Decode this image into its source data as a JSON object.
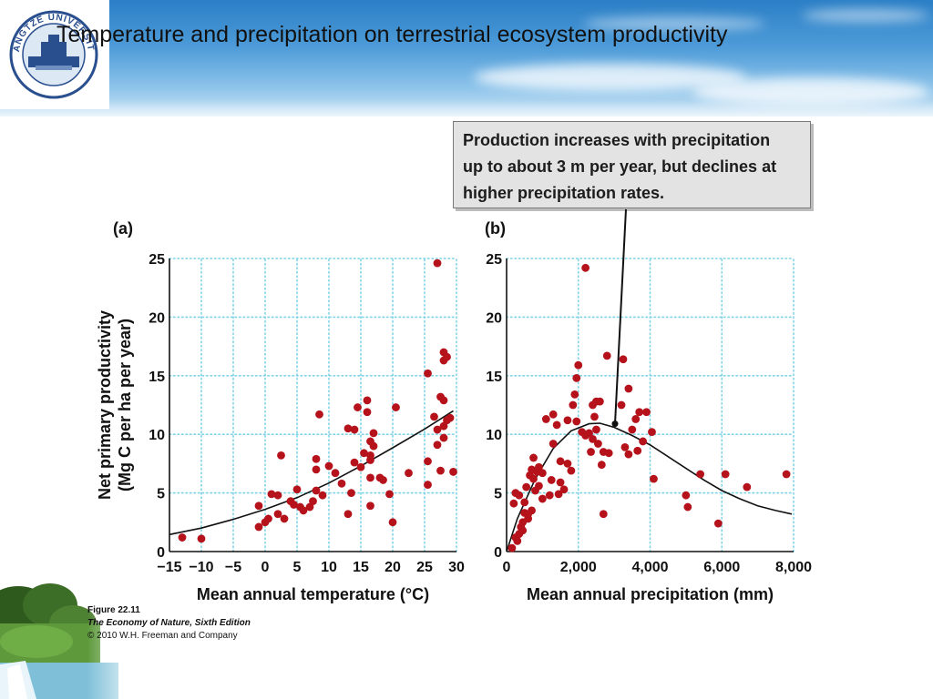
{
  "slide": {
    "title": "Temperature and precipitation on terrestrial ecosystem productivity",
    "logo_text": "YANGTZE UNIVERSITY"
  },
  "callout": {
    "lines": [
      "Production increases with precipitation",
      "up to about 3 m per year, but declines at",
      "higher precipitation rates."
    ]
  },
  "figure": {
    "label": "Figure 22.11",
    "book": "The Economy of Nature, Sixth Edition",
    "copyright": "© 2010 W.H. Freeman and Company"
  },
  "chart_data": [
    {
      "type": "scatter",
      "panel": "(a)",
      "xlabel": "Mean annual temperature (°C)",
      "ylabel_line1": "Net primary productivity",
      "ylabel_line2": "(Mg C per ha per year)",
      "xlim": [
        -15,
        30
      ],
      "ylim": [
        0,
        25
      ],
      "xticks": [
        -15,
        -10,
        -5,
        0,
        5,
        10,
        15,
        20,
        25,
        30
      ],
      "yticks": [
        0,
        5,
        10,
        15,
        20,
        25
      ],
      "grid": true,
      "point_color": "#b5121b",
      "points": [
        [
          -13,
          1.2
        ],
        [
          -10,
          1.1
        ],
        [
          -1,
          3.9
        ],
        [
          -1,
          2.1
        ],
        [
          0,
          2.5
        ],
        [
          0.5,
          2.8
        ],
        [
          1,
          4.9
        ],
        [
          2,
          3.2
        ],
        [
          2,
          4.8
        ],
        [
          2.5,
          8.2
        ],
        [
          3,
          2.8
        ],
        [
          4,
          4.3
        ],
        [
          4.5,
          4.0
        ],
        [
          5,
          5.3
        ],
        [
          5.5,
          3.8
        ],
        [
          6,
          3.5
        ],
        [
          7,
          3.8
        ],
        [
          7.5,
          4.3
        ],
        [
          8,
          7.9
        ],
        [
          8,
          5.2
        ],
        [
          8,
          7.0
        ],
        [
          8.5,
          11.7
        ],
        [
          9,
          4.8
        ],
        [
          10,
          7.3
        ],
        [
          11,
          6.7
        ],
        [
          12,
          5.8
        ],
        [
          13,
          10.5
        ],
        [
          13,
          3.2
        ],
        [
          13.5,
          5.0
        ],
        [
          14,
          10.4
        ],
        [
          14,
          7.6
        ],
        [
          14.5,
          12.3
        ],
        [
          15,
          7.2
        ],
        [
          15.5,
          8.4
        ],
        [
          16,
          11.9
        ],
        [
          16,
          12.9
        ],
        [
          16.5,
          9.4
        ],
        [
          16.5,
          8.2
        ],
        [
          16.5,
          7.8
        ],
        [
          16.5,
          6.3
        ],
        [
          16.5,
          3.9
        ],
        [
          17,
          10.1
        ],
        [
          17,
          9.0
        ],
        [
          18,
          6.3
        ],
        [
          18.5,
          6.1
        ],
        [
          19.5,
          4.9
        ],
        [
          20,
          2.5
        ],
        [
          20.5,
          12.3
        ],
        [
          22.5,
          6.7
        ],
        [
          25.5,
          15.2
        ],
        [
          25.5,
          7.7
        ],
        [
          25.5,
          5.7
        ],
        [
          26.5,
          11.5
        ],
        [
          27,
          24.6
        ],
        [
          27,
          10.4
        ],
        [
          27,
          9.1
        ],
        [
          27.5,
          13.2
        ],
        [
          27.5,
          6.9
        ],
        [
          28,
          17.0
        ],
        [
          28,
          16.3
        ],
        [
          28,
          12.9
        ],
        [
          28,
          10.7
        ],
        [
          28,
          9.7
        ],
        [
          28.5,
          16.6
        ],
        [
          28.5,
          11.2
        ],
        [
          29,
          11.4
        ],
        [
          29.5,
          6.8
        ]
      ],
      "curve": [
        [
          -15,
          1.45
        ],
        [
          -10,
          2.0
        ],
        [
          -5,
          2.75
        ],
        [
          0,
          3.6
        ],
        [
          5,
          4.6
        ],
        [
          10,
          5.85
        ],
        [
          15,
          7.3
        ],
        [
          20,
          8.85
        ],
        [
          25,
          10.45
        ],
        [
          29.5,
          12.0
        ]
      ]
    },
    {
      "type": "scatter",
      "panel": "(b)",
      "xlabel": "Mean annual precipitation (mm)",
      "xlim": [
        0,
        8000
      ],
      "ylim": [
        0,
        25
      ],
      "xticks": [
        0,
        2000,
        4000,
        6000,
        8000
      ],
      "xtick_labels": [
        "0",
        "2,000",
        "4,000",
        "6,000",
        "8,000"
      ],
      "yticks": [
        0,
        5,
        10,
        15,
        20,
        25
      ],
      "grid": true,
      "point_color": "#b5121b",
      "points": [
        [
          150,
          0.3
        ],
        [
          200,
          4.1
        ],
        [
          250,
          5.0
        ],
        [
          250,
          1.2
        ],
        [
          300,
          0.9
        ],
        [
          350,
          1.5
        ],
        [
          350,
          4.8
        ],
        [
          400,
          2.1
        ],
        [
          450,
          2.5
        ],
        [
          450,
          1.8
        ],
        [
          500,
          3.3
        ],
        [
          500,
          4.2
        ],
        [
          550,
          5.5
        ],
        [
          600,
          2.8
        ],
        [
          600,
          3.2
        ],
        [
          650,
          6.5
        ],
        [
          700,
          3.5
        ],
        [
          700,
          7.0
        ],
        [
          750,
          8.0
        ],
        [
          750,
          6.2
        ],
        [
          800,
          5.2
        ],
        [
          850,
          6.8
        ],
        [
          900,
          7.2
        ],
        [
          900,
          5.6
        ],
        [
          1000,
          4.5
        ],
        [
          1000,
          6.7
        ],
        [
          1100,
          11.3
        ],
        [
          1200,
          4.8
        ],
        [
          1250,
          6.1
        ],
        [
          1300,
          11.7
        ],
        [
          1300,
          9.2
        ],
        [
          1400,
          10.8
        ],
        [
          1450,
          4.9
        ],
        [
          1500,
          7.7
        ],
        [
          1500,
          5.9
        ],
        [
          1600,
          5.3
        ],
        [
          1700,
          11.2
        ],
        [
          1700,
          7.5
        ],
        [
          1800,
          6.9
        ],
        [
          1850,
          12.5
        ],
        [
          1900,
          13.4
        ],
        [
          1950,
          11.1
        ],
        [
          1950,
          14.8
        ],
        [
          2000,
          15.9
        ],
        [
          2100,
          10.2
        ],
        [
          2200,
          9.9
        ],
        [
          2200,
          24.2
        ],
        [
          2300,
          10.1
        ],
        [
          2350,
          8.5
        ],
        [
          2400,
          12.5
        ],
        [
          2400,
          9.6
        ],
        [
          2450,
          11.5
        ],
        [
          2500,
          10.4
        ],
        [
          2500,
          12.8
        ],
        [
          2550,
          9.2
        ],
        [
          2600,
          12.8
        ],
        [
          2650,
          7.4
        ],
        [
          2700,
          8.5
        ],
        [
          2700,
          3.2
        ],
        [
          2800,
          16.7
        ],
        [
          2850,
          8.4
        ],
        [
          3200,
          12.5
        ],
        [
          3250,
          16.4
        ],
        [
          3300,
          8.9
        ],
        [
          3400,
          13.9
        ],
        [
          3400,
          8.3
        ],
        [
          3500,
          10.4
        ],
        [
          3600,
          11.3
        ],
        [
          3650,
          8.6
        ],
        [
          3700,
          11.9
        ],
        [
          3800,
          9.4
        ],
        [
          3900,
          11.9
        ],
        [
          4050,
          10.2
        ],
        [
          4100,
          6.2
        ],
        [
          5000,
          4.8
        ],
        [
          5050,
          3.8
        ],
        [
          5400,
          6.6
        ],
        [
          5900,
          2.4
        ],
        [
          6100,
          6.6
        ],
        [
          6700,
          5.5
        ],
        [
          7800,
          6.6
        ]
      ],
      "curve": [
        [
          0,
          0
        ],
        [
          300,
          2.8
        ],
        [
          800,
          6.2
        ],
        [
          1300,
          8.8
        ],
        [
          1800,
          10.3
        ],
        [
          2300,
          10.9
        ],
        [
          2600,
          10.95
        ],
        [
          3000,
          10.6
        ],
        [
          3500,
          9.9
        ],
        [
          4000,
          9.1
        ],
        [
          4500,
          8.1
        ],
        [
          5000,
          7.1
        ],
        [
          5500,
          6.1
        ],
        [
          6000,
          5.2
        ],
        [
          6500,
          4.5
        ],
        [
          7000,
          3.9
        ],
        [
          7500,
          3.5
        ],
        [
          7950,
          3.2
        ]
      ]
    }
  ]
}
